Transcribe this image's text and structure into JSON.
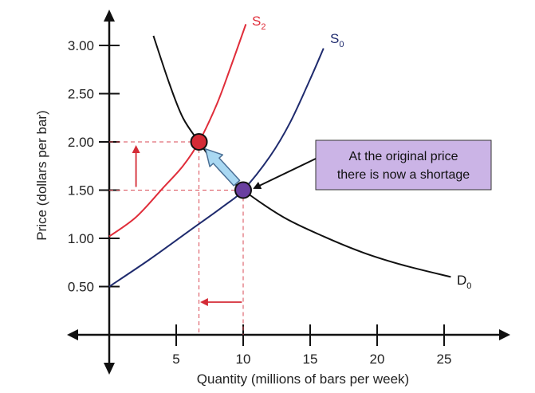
{
  "chart_data": {
    "type": "line",
    "xlabel": "Quantity (millions of bars per week)",
    "ylabel": "Price (dollars per bar)",
    "xlim": [
      0,
      27
    ],
    "ylim": [
      0,
      3.3
    ],
    "x_ticks": [
      "5",
      "10",
      "15",
      "20",
      "25"
    ],
    "x_tick_values": [
      5,
      10,
      15,
      20,
      25
    ],
    "y_ticks": [
      "0.50",
      "1.00",
      "1.50",
      "2.00",
      "2.50",
      "3.00"
    ],
    "y_tick_values": [
      0.5,
      1.0,
      1.5,
      2.0,
      2.5,
      3.0
    ],
    "series": [
      {
        "name": "S",
        "subscript": "2",
        "color": "#e02d3a",
        "points": [
          [
            0,
            1.02
          ],
          [
            2,
            1.22
          ],
          [
            4,
            1.52
          ],
          [
            5.5,
            1.75
          ],
          [
            6.7,
            2.0
          ],
          [
            8,
            2.38
          ],
          [
            9,
            2.75
          ],
          [
            10.2,
            3.22
          ]
        ]
      },
      {
        "name": "S",
        "subscript": "0",
        "color": "#1f2b6e",
        "points": [
          [
            0,
            0.5
          ],
          [
            3,
            0.78
          ],
          [
            6,
            1.08
          ],
          [
            8.5,
            1.33
          ],
          [
            10,
            1.5
          ],
          [
            12,
            1.85
          ],
          [
            13.5,
            2.2
          ],
          [
            15,
            2.65
          ],
          [
            16,
            2.97
          ]
        ]
      },
      {
        "name": "D",
        "subscript": "0",
        "color": "#111111",
        "points": [
          [
            3.3,
            3.1
          ],
          [
            4.5,
            2.6
          ],
          [
            5.5,
            2.25
          ],
          [
            6.7,
            2.0
          ],
          [
            8.3,
            1.7
          ],
          [
            10,
            1.5
          ],
          [
            13,
            1.22
          ],
          [
            16,
            1.02
          ],
          [
            19,
            0.85
          ],
          [
            22,
            0.72
          ],
          [
            25.5,
            0.6
          ]
        ]
      }
    ],
    "points": [
      {
        "name": "equilibrium-new",
        "x": 6.7,
        "y": 2.0,
        "color": "#d42b36"
      },
      {
        "name": "equilibrium-original",
        "x": 10,
        "y": 1.5,
        "color": "#6a3fa0"
      }
    ],
    "annotation": {
      "text_line1": "At the original price",
      "text_line2": "there is now a shortage",
      "box_color": "#cbb4e6"
    }
  }
}
